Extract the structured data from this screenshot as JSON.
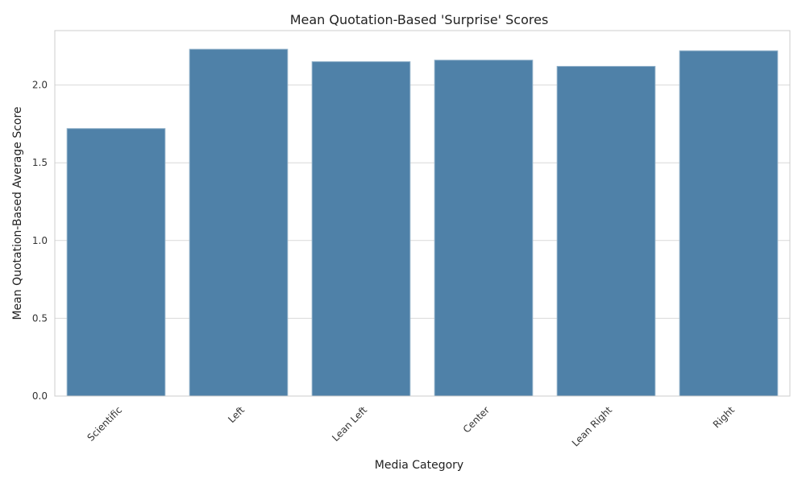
{
  "chart_data": {
    "type": "bar",
    "title": "Mean Quotation-Based 'Surprise' Scores",
    "xlabel": "Media Category",
    "ylabel": "Mean Quotation-Based Average Score",
    "categories": [
      "Scientific",
      "Left",
      "Lean Left",
      "Center",
      "Lean Right",
      "Right"
    ],
    "values": [
      1.72,
      2.23,
      2.15,
      2.16,
      2.12,
      2.22
    ],
    "ylim": [
      0,
      2.35
    ],
    "yticks": [
      "0.0",
      "0.5",
      "1.0",
      "1.5",
      "2.0"
    ],
    "ytick_values": [
      0,
      0.5,
      1.0,
      1.5,
      2.0
    ],
    "grid": true,
    "bar_color": "#4f81a8",
    "bar_edge_color": "#8fb0c9"
  }
}
